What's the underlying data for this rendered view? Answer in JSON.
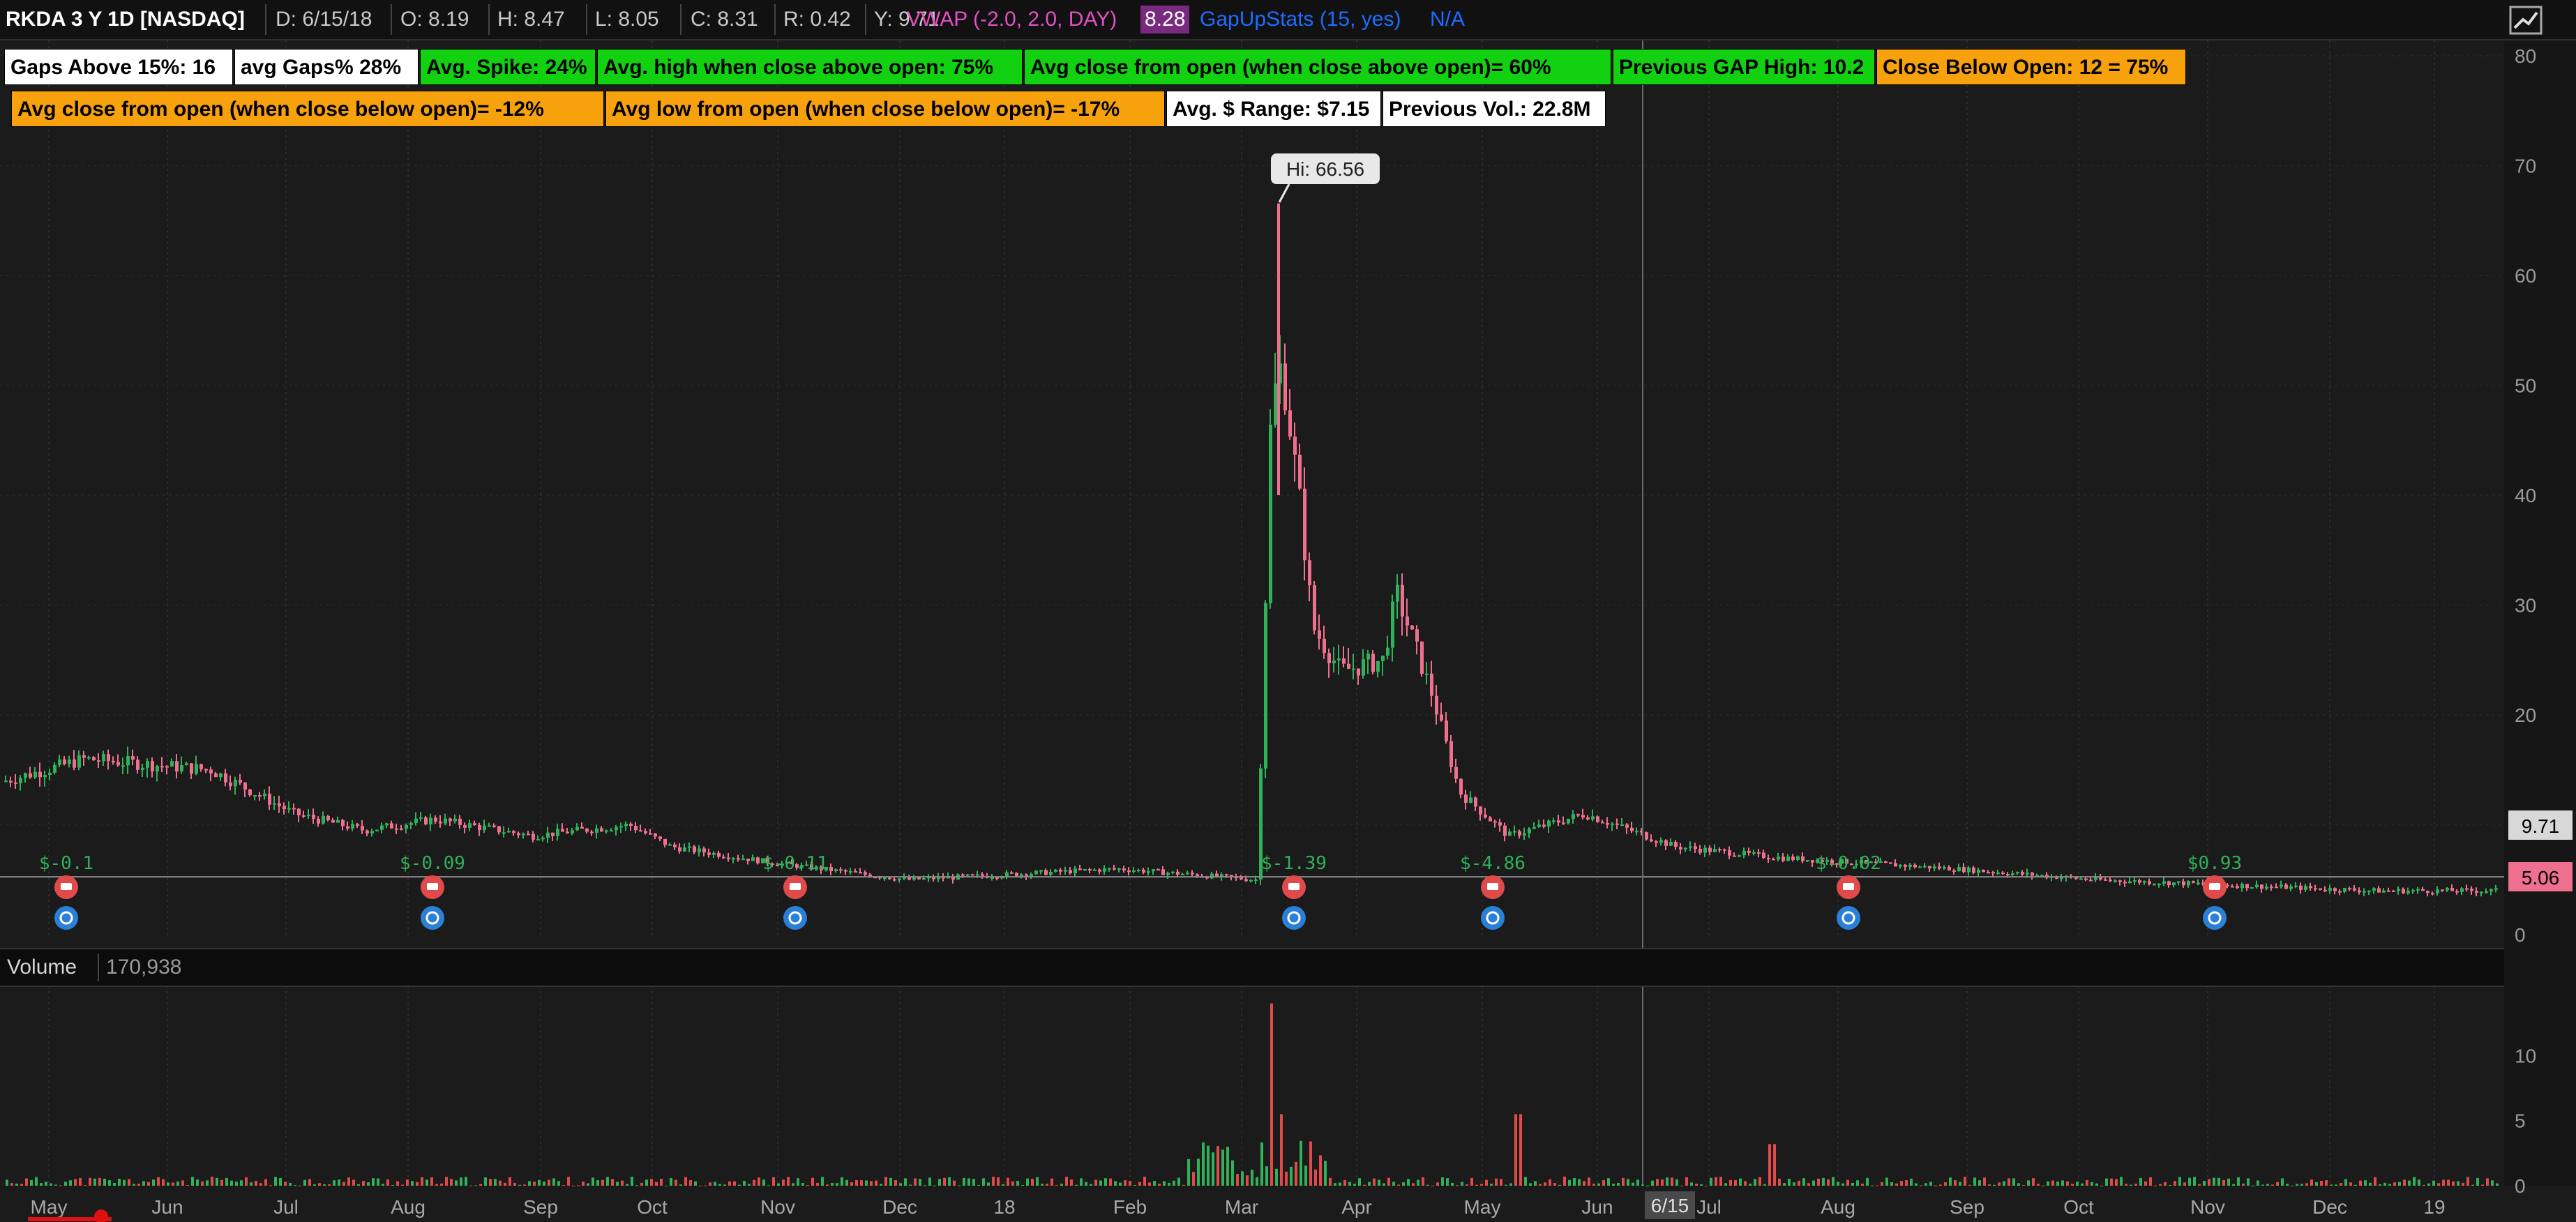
{
  "header": {
    "symbol": "RKDA 3 Y 1D [NASDAQ]",
    "date": "D: 6/15/18",
    "open": "O: 8.19",
    "high": "H: 8.47",
    "low": "L: 8.05",
    "close": "C: 8.31",
    "range": "R: 0.42",
    "y": "Y: 9.71",
    "vwap": "VWAP (-2.0, 2.0, DAY)",
    "vwap_value": "8.28",
    "gapup": "GapUpStats (15, yes)",
    "gapup_value": "N/A"
  },
  "labels_row1": [
    {
      "text": "Gaps Above 15%: 16",
      "color": "white"
    },
    {
      "text": "avg Gaps%  28%",
      "color": "white"
    },
    {
      "text": "Avg. Spike: 24%",
      "color": "green"
    },
    {
      "text": "Avg. high when close above open: 75%",
      "color": "green"
    },
    {
      "text": "Avg close from open (when close above open)=   60%",
      "color": "green"
    },
    {
      "text": "Previous GAP High: 10.2",
      "color": "green"
    },
    {
      "text": "Close Below Open: 12 = 75%",
      "color": "orange"
    }
  ],
  "labels_row2": [
    {
      "text": "Avg close from open (when close below open)=   -12%",
      "color": "orange"
    },
    {
      "text": "Avg low from open (when close below open)= -17%",
      "color": "orange"
    },
    {
      "text": "Avg. $ Range: $7.15",
      "color": "white"
    },
    {
      "text": "Previous Vol.: 22.8M",
      "color": "white"
    }
  ],
  "hi_bubble": "Hi: 66.56",
  "price_axis": {
    "ticks": [
      "80",
      "70",
      "60",
      "50",
      "40",
      "30",
      "20",
      "10",
      "0"
    ],
    "last_price": "9.71",
    "tag_price": "5.06"
  },
  "volume_axis": {
    "ticks": [
      "10",
      "5",
      "0"
    ]
  },
  "volume_panel": {
    "title": "Volume",
    "value": "170,938"
  },
  "x_axis": {
    "labels": [
      "May",
      "Jun",
      "Jul",
      "Aug",
      "Sep",
      "Oct",
      "Nov",
      "Dec",
      "18",
      "Feb",
      "Mar",
      "Apr",
      "May",
      "Jun",
      "Jul",
      "Aug",
      "Sep",
      "Oct",
      "Nov",
      "Dec",
      "19"
    ],
    "cursor_date": "6/15"
  },
  "event_labels": [
    "$-0.1",
    "$-0.09",
    "$-0.11",
    "$-1.39",
    "$-4.86",
    "$-0.02",
    "$0.93"
  ],
  "colors": {
    "background": "#1b1b1b",
    "up": "#2fb15a",
    "down": "#ef6f8f",
    "earnings": "#e04a4a",
    "dividend": "#2a7fd6",
    "label_green": "#11d111",
    "label_orange": "#f7a10d"
  },
  "chart_data": {
    "type": "candlestick",
    "symbol": "RKDA",
    "approx_closes_monthly": [
      {
        "x": "May",
        "y": 15
      },
      {
        "x": "Jun",
        "y": 14
      },
      {
        "x": "Jul",
        "y": 10
      },
      {
        "x": "Aug",
        "y": 10
      },
      {
        "x": "Sep",
        "y": 10
      },
      {
        "x": "Oct",
        "y": 9
      },
      {
        "x": "Nov",
        "y": 6
      },
      {
        "x": "Dec",
        "y": 5
      },
      {
        "x": "18",
        "y": 5
      },
      {
        "x": "Feb",
        "y": 6
      },
      {
        "x": "Mar",
        "y": 40
      },
      {
        "x": "Apr",
        "y": 25
      },
      {
        "x": "May",
        "y": 10
      },
      {
        "x": "Jun",
        "y": 9
      },
      {
        "x": "Jul",
        "y": 8
      },
      {
        "x": "Aug",
        "y": 7
      },
      {
        "x": "Sep",
        "y": 6
      },
      {
        "x": "Oct",
        "y": 5
      },
      {
        "x": "Nov",
        "y": 4
      },
      {
        "x": "Dec",
        "y": 4
      },
      {
        "x": "19",
        "y": 4
      }
    ],
    "ylim": [
      0,
      80
    ],
    "volume_ylim": [
      0,
      15
    ]
  }
}
